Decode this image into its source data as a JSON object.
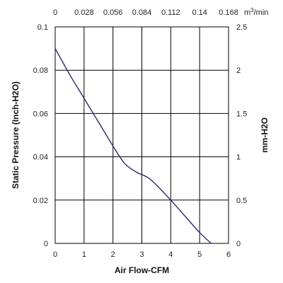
{
  "chart_data": {
    "type": "line",
    "title": "",
    "xlabel": "Air Flow-CFM",
    "ylabel": "Static Pressure (Inch-H2O)",
    "y2label": "mm-H2O",
    "x2unit_base": "m",
    "x2unit_sup": "3",
    "x2unit_tail": "/min",
    "xlim": [
      0,
      6
    ],
    "ylim": [
      0,
      0.1
    ],
    "x2lim": [
      0,
      0.168
    ],
    "y2lim": [
      0,
      2.5
    ],
    "xticks": [
      "0",
      "1",
      "2",
      "3",
      "4",
      "5",
      "6"
    ],
    "yticks": [
      "0",
      "0.02",
      "0.04",
      "0.06",
      "0.08",
      "0.1"
    ],
    "x2ticks": [
      "0",
      "0.028",
      "0.056",
      "0.084",
      "0.112",
      "0.14",
      "0.168"
    ],
    "y2ticks": [
      "0",
      "0.5",
      "1",
      "1.5",
      "2",
      "2.5"
    ],
    "grid": true,
    "series": [
      {
        "color": "#2b2a66",
        "x": [
          0,
          0.5,
          1.0,
          1.5,
          2.0,
          2.4,
          2.8,
          3.2,
          3.5,
          4.0,
          4.5,
          5.0,
          5.4
        ],
        "y": [
          0.09,
          0.078,
          0.067,
          0.056,
          0.045,
          0.037,
          0.033,
          0.0305,
          0.027,
          0.02,
          0.0125,
          0.005,
          0.0
        ]
      }
    ]
  }
}
